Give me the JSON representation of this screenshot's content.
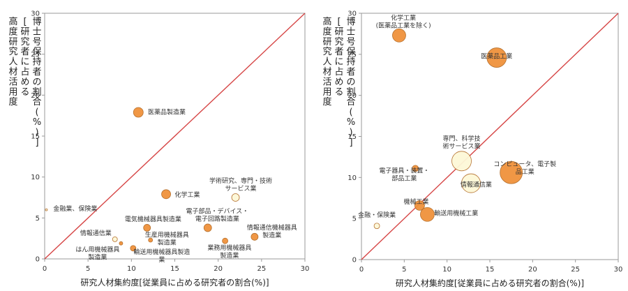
{
  "chart_data": [
    {
      "type": "scatter",
      "bubble": true,
      "xlim": [
        0,
        30
      ],
      "ylim": [
        0,
        30
      ],
      "xticks": [
        "0",
        "5",
        "10",
        "15",
        "20",
        "25",
        "30"
      ],
      "yticks": [
        "0",
        "5",
        "10",
        "15",
        "20",
        "25",
        "30"
      ],
      "xlabel": "研究人材集約度[従業員に占める研究者の割合(%)]",
      "ylabel_lines": [
        "[研究者に占める",
        "高度研究人材活用度",
        "博士号保持者の割合(%)]"
      ],
      "diagonal_color": "#d64545",
      "points": [
        {
          "label": "医薬品製造業",
          "x": 10.8,
          "y": 17.9,
          "r": 7,
          "fill": "#f0923c"
        },
        {
          "label": "化学工業",
          "x": 14.0,
          "y": 7.9,
          "r": 6.5,
          "fill": "#f0923c"
        },
        {
          "label": "学術研究、専門・技術サービス業",
          "x": 22.0,
          "y": 7.5,
          "r": 5.5,
          "fill": "#fdf8d8"
        },
        {
          "label": "電子部品・デバイス・電子回路製造業",
          "x": 18.8,
          "y": 3.8,
          "r": 5.5,
          "fill": "#f0923c"
        },
        {
          "label": "情報通信機械器具製造業",
          "x": 24.2,
          "y": 2.7,
          "r": 5,
          "fill": "#f0923c"
        },
        {
          "label": "電気機械器具製造業",
          "x": 11.8,
          "y": 3.8,
          "r": 5,
          "fill": "#f0923c"
        },
        {
          "label": "業務用機械器具製造業",
          "x": 20.8,
          "y": 2.2,
          "r": 4,
          "fill": "#f0923c"
        },
        {
          "label": "生産用機械器具製造業",
          "x": 12.2,
          "y": 2.3,
          "r": 3,
          "fill": "#f0923c"
        },
        {
          "label": "情報通信業",
          "x": 8.1,
          "y": 2.4,
          "r": 3.5,
          "fill": "#fdf8d8"
        },
        {
          "label": "はん用機械器具製造業",
          "x": 8.8,
          "y": 1.9,
          "r": 2.5,
          "fill": "#f0923c"
        },
        {
          "label": "輸送用機械器具製造業",
          "x": 10.2,
          "y": 1.3,
          "r": 4,
          "fill": "#f0923c"
        },
        {
          "label": "金融業、保険業",
          "x": 0.2,
          "y": 6.0,
          "r": 1.5,
          "fill": "#fdf8d8"
        }
      ],
      "labels": [
        {
          "id": "pharma",
          "lines": [
            "医薬品製造業"
          ],
          "x": 11.9,
          "y": 17.7,
          "anchor": "start"
        },
        {
          "id": "chem",
          "lines": [
            "化学工業"
          ],
          "x": 15.0,
          "y": 7.6,
          "anchor": "start"
        },
        {
          "id": "academic",
          "lines": [
            "学術研究、専門・技術",
            "サービス業"
          ],
          "x": 22.6,
          "y": 9.3,
          "anchor": "middle"
        },
        {
          "id": "elec-parts",
          "lines": [
            "電子部品・デバイス・",
            "電子回路製造業"
          ],
          "x": 19.9,
          "y": 5.6,
          "anchor": "middle"
        },
        {
          "id": "ict-equip",
          "lines": [
            "情報通信機械器具",
            "製造業"
          ],
          "x": 26.2,
          "y": 3.6,
          "anchor": "middle"
        },
        {
          "id": "electrical",
          "lines": [
            "電気機械器具製造業"
          ],
          "x": 12.5,
          "y": 4.6,
          "anchor": "middle"
        },
        {
          "id": "business-mach",
          "lines": [
            "業務用機械器具",
            "製造業"
          ],
          "x": 21.3,
          "y": 1.1,
          "anchor": "middle"
        },
        {
          "id": "production-mach",
          "lines": [
            "生産用機械器具",
            "製造業"
          ],
          "x": 14.1,
          "y": 2.7,
          "anchor": "middle"
        },
        {
          "id": "ict",
          "lines": [
            "情報通信業"
          ],
          "x": 7.7,
          "y": 2.9,
          "anchor": "end"
        },
        {
          "id": "general-mach",
          "lines": [
            "はん用機械器具",
            "製造業"
          ],
          "x": 6.1,
          "y": 0.9,
          "anchor": "middle"
        },
        {
          "id": "transport",
          "lines": [
            "輸送用機械器具製造",
            "業"
          ],
          "x": 13.5,
          "y": 0.6,
          "anchor": "middle"
        },
        {
          "id": "finance",
          "lines": [
            "金融業、保険業"
          ],
          "x": 1.0,
          "y": 5.9,
          "anchor": "start"
        }
      ]
    },
    {
      "type": "scatter",
      "bubble": true,
      "xlim": [
        0,
        30
      ],
      "ylim": [
        0,
        30
      ],
      "xticks": [
        "0",
        "5",
        "10",
        "15",
        "20",
        "25",
        "30"
      ],
      "yticks": [
        "0",
        "5",
        "10",
        "15",
        "20",
        "25",
        "30"
      ],
      "xlabel": "研究人材集約度[従業員に占める研究者の割合(%)]",
      "ylabel_lines": [
        "[研究者に占める",
        "高度研究人材活用度",
        "博士号保持者の割合(%)]"
      ],
      "diagonal_color": "#d64545",
      "points": [
        {
          "label": "化学工業(医薬品工業を除く)",
          "x": 4.4,
          "y": 27.3,
          "r": 9.5,
          "fill": "#f0923c"
        },
        {
          "label": "医薬品工業",
          "x": 15.8,
          "y": 24.6,
          "r": 14,
          "fill": "#f0923c"
        },
        {
          "label": "専門、科学技術サービス業",
          "x": 11.7,
          "y": 12.0,
          "r": 14,
          "fill": "#fdf8d8"
        },
        {
          "label": "電子器具・装置・部品工業",
          "x": 6.3,
          "y": 11.1,
          "r": 4.5,
          "fill": "#f0923c"
        },
        {
          "label": "コンピュータ、電子製品工業",
          "x": 17.5,
          "y": 10.6,
          "r": 16,
          "fill": "#f0923c"
        },
        {
          "label": "情報通信業",
          "x": 12.8,
          "y": 9.3,
          "r": 13.5,
          "fill": "#fdf8d8"
        },
        {
          "label": "機械工業",
          "x": 6.8,
          "y": 6.6,
          "r": 7,
          "fill": "#f0923c"
        },
        {
          "label": "輸送用機械工業",
          "x": 7.7,
          "y": 5.5,
          "r": 10,
          "fill": "#f0923c"
        },
        {
          "label": "金融・保険業",
          "x": 1.8,
          "y": 4.1,
          "r": 4,
          "fill": "#fdf8d8"
        }
      ],
      "labels": [
        {
          "id": "chem-ex",
          "lines": [
            "化学工業",
            "(医薬品工業を除く)"
          ],
          "x": 4.9,
          "y": 29.2,
          "anchor": "middle"
        },
        {
          "id": "pharma-ind",
          "lines": [
            "医薬品工業"
          ],
          "x": 15.8,
          "y": 24.5,
          "anchor": "middle"
        },
        {
          "id": "sci-services",
          "lines": [
            "専門、科学技",
            "術サービス業"
          ],
          "x": 11.7,
          "y": 14.5,
          "anchor": "middle"
        },
        {
          "id": "elec-devices",
          "lines": [
            "電子器具・装置・",
            "部品工業"
          ],
          "x": 5.0,
          "y": 10.6,
          "anchor": "middle"
        },
        {
          "id": "computers",
          "lines": [
            "コンピュータ、電子製",
            "品工業"
          ],
          "x": 19.1,
          "y": 11.4,
          "anchor": "middle"
        },
        {
          "id": "ict-ind",
          "lines": [
            "情報通信業"
          ],
          "x": 13.4,
          "y": 8.9,
          "anchor": "middle"
        },
        {
          "id": "machinery",
          "lines": [
            "機械工業"
          ],
          "x": 6.4,
          "y": 6.8,
          "anchor": "middle"
        },
        {
          "id": "transport-ind",
          "lines": [
            "輸送用機械工業"
          ],
          "x": 8.5,
          "y": 5.4,
          "anchor": "start"
        },
        {
          "id": "finance-ind",
          "lines": [
            "金融・保険業"
          ],
          "x": 1.8,
          "y": 5.2,
          "anchor": "middle"
        }
      ]
    }
  ]
}
